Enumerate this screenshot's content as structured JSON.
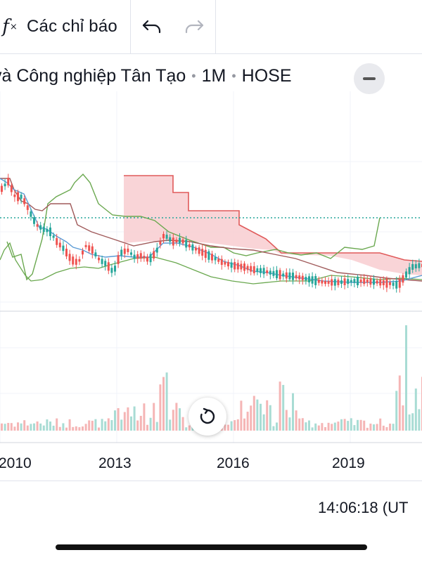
{
  "toolbar": {
    "indicators_label": "Các chỉ báo",
    "icons": [
      "fx-icon",
      "undo-icon",
      "redo-icon"
    ]
  },
  "legend": {
    "symbol_title": "và Công nghiệp Tân Tạo",
    "interval": "1M",
    "exchange": "HOSE"
  },
  "chart_data": {
    "type": "candlestick",
    "x_ticks": [
      "2010",
      "2013",
      "2016",
      "2019"
    ],
    "indicators": [
      "Ichimoku Cloud"
    ],
    "colors": {
      "up": "#26a69a",
      "down": "#ef5350",
      "cloud_bear": "#f8cdd0",
      "span_b": "#e05a5a",
      "lagging": "#6aa84f",
      "conversion": "#5b9bd5",
      "base": "#a05a5a",
      "price_line": "#26a69a"
    }
  },
  "status": {
    "time": "14:06:18 (UT"
  }
}
